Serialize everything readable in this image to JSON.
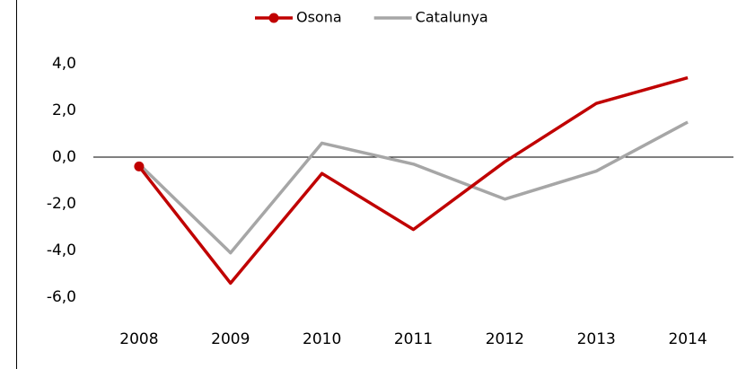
{
  "chart_data": {
    "type": "line",
    "categories": [
      "2008",
      "2009",
      "2010",
      "2011",
      "2012",
      "2013",
      "2014"
    ],
    "series": [
      {
        "name": "Osona",
        "color": "#c00000",
        "values": [
          -0.4,
          -5.4,
          -0.7,
          -3.1,
          -0.2,
          2.3,
          3.4
        ]
      },
      {
        "name": "Catalunya",
        "color": "#a6a6a6",
        "values": [
          -0.3,
          -4.1,
          0.6,
          -0.3,
          -1.8,
          -0.6,
          1.5
        ]
      }
    ],
    "ylim": [
      -7,
      5
    ],
    "yticks": [
      {
        "value": 4,
        "label": "4,0"
      },
      {
        "value": 2,
        "label": "2,0"
      },
      {
        "value": 0,
        "label": "0,0"
      },
      {
        "value": -2,
        "label": "-2,0"
      },
      {
        "value": -4,
        "label": "-4,0"
      },
      {
        "value": -6,
        "label": "-6,0"
      }
    ],
    "legend": "top"
  }
}
